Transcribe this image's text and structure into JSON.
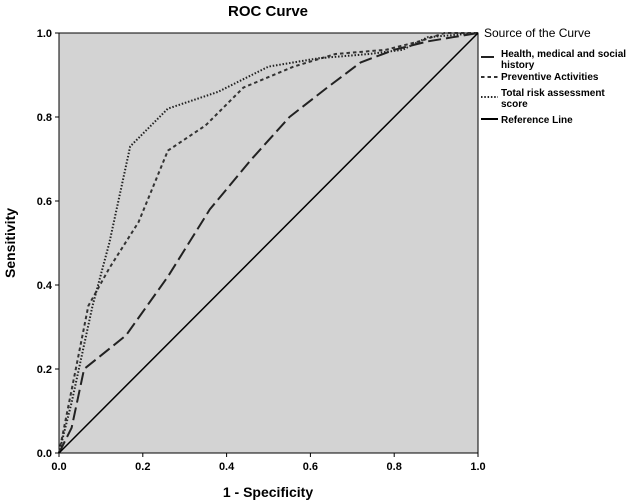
{
  "chart_data": {
    "type": "line",
    "title": "ROC Curve",
    "xlabel": "1 - Specificity",
    "ylabel": "Sensitivity",
    "xlim": [
      0,
      1
    ],
    "ylim": [
      0,
      1
    ],
    "xticks": [
      "0.0",
      "0.2",
      "0.4",
      "0.6",
      "0.8",
      "1.0"
    ],
    "yticks": [
      "0.0",
      "0.2",
      "0.4",
      "0.6",
      "0.8",
      "1.0"
    ],
    "grid": false,
    "background": "#d3d3d3",
    "legend": {
      "title": "Source of the Curve",
      "placement": "right"
    },
    "series": [
      {
        "name": "Health, medical and social history",
        "dash": "long-dash",
        "color": "#222222",
        "x": [
          0.0,
          0.03,
          0.06,
          0.16,
          0.26,
          0.36,
          0.46,
          0.55,
          0.64,
          0.72,
          0.8,
          0.88,
          0.94,
          1.0
        ],
        "y": [
          0.0,
          0.06,
          0.2,
          0.28,
          0.42,
          0.58,
          0.7,
          0.8,
          0.87,
          0.93,
          0.96,
          0.98,
          0.99,
          1.0
        ]
      },
      {
        "name": "Preventive Activities",
        "dash": "short-dash",
        "color": "#333333",
        "x": [
          0.0,
          0.04,
          0.07,
          0.12,
          0.19,
          0.26,
          0.35,
          0.44,
          0.56,
          0.66,
          0.78,
          0.86,
          0.92,
          1.0
        ],
        "y": [
          0.0,
          0.2,
          0.35,
          0.44,
          0.55,
          0.72,
          0.78,
          0.87,
          0.92,
          0.95,
          0.96,
          0.98,
          1.0,
          1.0
        ]
      },
      {
        "name": "Total risk assessment score",
        "dash": "dotted",
        "color": "#222222",
        "x": [
          0.0,
          0.03,
          0.08,
          0.12,
          0.17,
          0.26,
          0.38,
          0.5,
          0.62,
          0.74,
          0.82,
          0.88,
          1.0
        ],
        "y": [
          0.0,
          0.12,
          0.35,
          0.5,
          0.73,
          0.82,
          0.86,
          0.92,
          0.94,
          0.95,
          0.96,
          0.99,
          1.0
        ]
      },
      {
        "name": "Reference Line",
        "dash": "solid",
        "color": "#000000",
        "x": [
          0.0,
          1.0
        ],
        "y": [
          0.0,
          1.0
        ]
      }
    ]
  }
}
